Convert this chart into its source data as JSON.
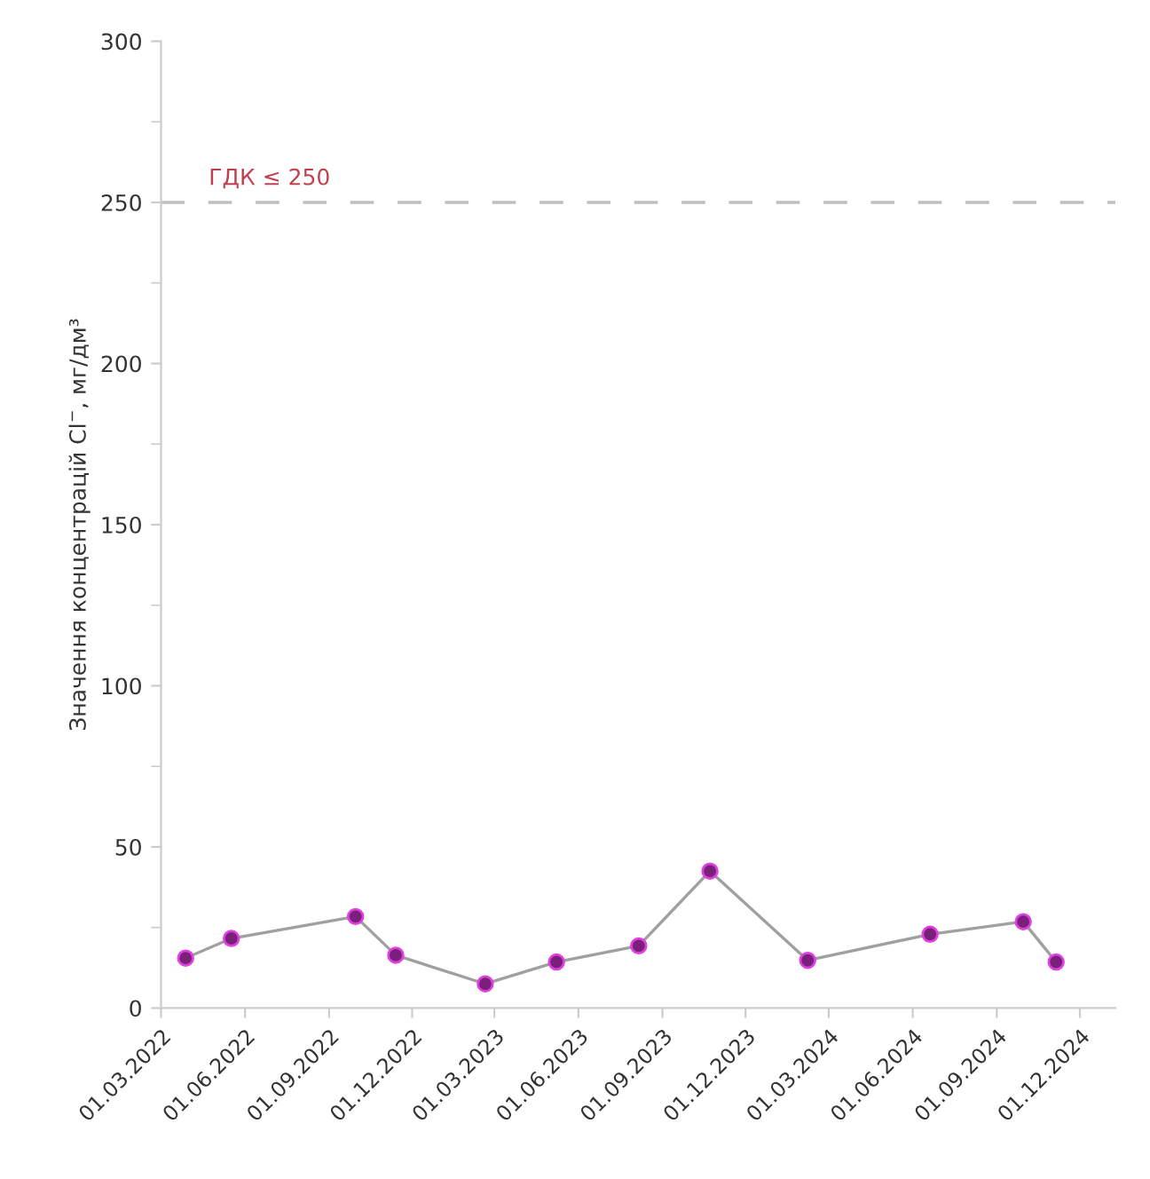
{
  "chart_data": {
    "type": "line",
    "ylabel": "Значення концентрацій Cl$^{−}$, мг/дм³",
    "x": [
      "2022-03-28",
      "2022-05-17",
      "2022-09-30",
      "2022-11-13",
      "2023-02-19",
      "2023-05-08",
      "2023-08-06",
      "2023-10-23",
      "2024-02-07",
      "2024-06-20",
      "2024-09-30",
      "2024-11-05"
    ],
    "series": [
      {
        "color": "#7a1f7a",
        "values": [
          15.5,
          21.6,
          28.4,
          16.4,
          7.5,
          14.3,
          19.3,
          42.5,
          14.8,
          22.9,
          26.8,
          14.3
        ]
      }
    ],
    "marker": "circle",
    "line_style": "solid",
    "grid": false,
    "legend": false,
    "xlim": [
      "2022-03-01",
      "2025-01-09"
    ],
    "xticks": [
      {
        "value": "2022-03-01",
        "label": "01.03.2022"
      },
      {
        "value": "2022-06-01",
        "label": "01.06.2022"
      },
      {
        "value": "2022-09-01",
        "label": "01.09.2022"
      },
      {
        "value": "2022-12-01",
        "label": "01.12.2022"
      },
      {
        "value": "2023-03-01",
        "label": "01.03.2023"
      },
      {
        "value": "2023-06-01",
        "label": "01.06.2023"
      },
      {
        "value": "2023-09-01",
        "label": "01.09.2023"
      },
      {
        "value": "2023-12-01",
        "label": "01.12.2023"
      },
      {
        "value": "2024-03-01",
        "label": "01.03.2024"
      },
      {
        "value": "2024-06-01",
        "label": "01.06.2024"
      },
      {
        "value": "2024-09-01",
        "label": "01.09.2024"
      },
      {
        "value": "2024-12-01",
        "label": "01.12.2024"
      }
    ],
    "ylim": [
      0,
      300
    ],
    "yticks": [
      0,
      50,
      100,
      150,
      200,
      250,
      300
    ],
    "ref_lines": [
      {
        "axis": "y",
        "value": 250,
        "label": "ГДК ≤ 250",
        "color": "#c0c0c0",
        "line_style": "dashed"
      }
    ]
  }
}
